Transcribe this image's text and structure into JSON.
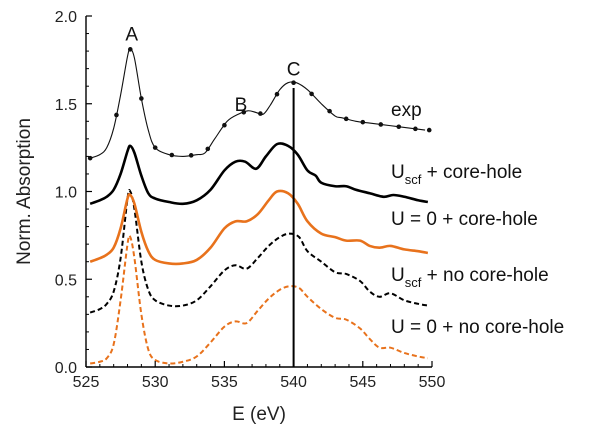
{
  "chart_data": {
    "type": "line",
    "xlabel": "E (eV)",
    "ylabel": "Norm. Absorption",
    "xlim": [
      525,
      550
    ],
    "ylim": [
      0,
      2.0
    ],
    "x_ticks": [
      525,
      530,
      535,
      540,
      545,
      550
    ],
    "y_ticks": [
      0.0,
      0.5,
      1.0,
      1.5,
      2.0
    ],
    "y_tick_labels": [
      "0.0",
      "0.5",
      "1.0",
      "1.5",
      "2.0"
    ],
    "grid": false,
    "vertical_line_x": 540,
    "peak_labels": [
      {
        "text": "A",
        "x": 528.3,
        "y": 1.9
      },
      {
        "text": "B",
        "x": 536.2,
        "y": 1.5
      },
      {
        "text": "C",
        "x": 540.0,
        "y": 1.7
      }
    ],
    "series": [
      {
        "name": "exp",
        "label_main": "exp",
        "label_sub": "",
        "label_tail": "",
        "color": "#111111",
        "width": 1.1,
        "dashed": false,
        "markers": true,
        "points": [
          [
            525.3,
            1.19
          ],
          [
            526,
            1.21
          ],
          [
            526.5,
            1.25
          ],
          [
            527.0,
            1.36
          ],
          [
            527.5,
            1.55
          ],
          [
            528.0,
            1.77
          ],
          [
            528.2,
            1.81
          ],
          [
            528.5,
            1.76
          ],
          [
            529.0,
            1.53
          ],
          [
            529.5,
            1.35
          ],
          [
            530.0,
            1.25
          ],
          [
            531.0,
            1.21
          ],
          [
            532.0,
            1.2
          ],
          [
            533.0,
            1.21
          ],
          [
            533.6,
            1.22
          ],
          [
            534.3,
            1.3
          ],
          [
            535.2,
            1.4
          ],
          [
            536.0,
            1.44
          ],
          [
            536.7,
            1.46
          ],
          [
            537.3,
            1.45
          ],
          [
            537.8,
            1.44
          ],
          [
            538.3,
            1.49
          ],
          [
            539.0,
            1.58
          ],
          [
            539.6,
            1.62
          ],
          [
            540.2,
            1.62
          ],
          [
            541.0,
            1.58
          ],
          [
            542.0,
            1.5
          ],
          [
            543.0,
            1.43
          ],
          [
            543.5,
            1.42
          ],
          [
            544.5,
            1.4
          ],
          [
            545.5,
            1.39
          ],
          [
            546.5,
            1.38
          ],
          [
            547.5,
            1.37
          ],
          [
            548.5,
            1.36
          ],
          [
            549.5,
            1.35
          ]
        ],
        "marker_x": [
          525.3,
          527.2,
          528.2,
          529.0,
          530.0,
          531.2,
          532.6,
          533.8,
          535.0,
          536.4,
          537.6,
          538.8,
          540.0,
          541.3,
          542.6,
          543.8,
          545.0,
          546.3,
          547.6,
          548.8,
          549.8
        ]
      },
      {
        "name": "Uscf + core-hole",
        "label_main": "U",
        "label_sub": "scf",
        "label_tail": " + core-hole",
        "color": "#000000",
        "width": 2.6,
        "dashed": false,
        "markers": false,
        "points": [
          [
            525.3,
            0.93
          ],
          [
            526,
            0.95
          ],
          [
            526.5,
            0.97
          ],
          [
            527.0,
            1.01
          ],
          [
            527.5,
            1.1
          ],
          [
            528.0,
            1.23
          ],
          [
            528.2,
            1.26
          ],
          [
            528.5,
            1.22
          ],
          [
            529.0,
            1.09
          ],
          [
            529.5,
            0.99
          ],
          [
            530.0,
            0.96
          ],
          [
            531.0,
            0.94
          ],
          [
            532.0,
            0.93
          ],
          [
            533.0,
            0.95
          ],
          [
            534.0,
            1.01
          ],
          [
            535.0,
            1.12
          ],
          [
            535.8,
            1.17
          ],
          [
            536.5,
            1.17
          ],
          [
            537.3,
            1.13
          ],
          [
            538.0,
            1.2
          ],
          [
            538.8,
            1.27
          ],
          [
            539.6,
            1.26
          ],
          [
            540.3,
            1.21
          ],
          [
            541.0,
            1.12
          ],
          [
            541.6,
            1.09
          ],
          [
            542.0,
            1.05
          ],
          [
            543.0,
            1.03
          ],
          [
            543.8,
            1.03
          ],
          [
            544.5,
            1.01
          ],
          [
            545.5,
            0.99
          ],
          [
            546.5,
            0.97
          ],
          [
            547.2,
            0.98
          ],
          [
            548.0,
            0.97
          ],
          [
            549.0,
            0.95
          ],
          [
            549.7,
            0.94
          ]
        ],
        "marker_x": []
      },
      {
        "name": "U = 0 + core-hole",
        "label_main": "U = 0 + core-hole",
        "label_sub": "",
        "label_tail": "",
        "color": "#e8721c",
        "width": 2.6,
        "dashed": false,
        "markers": false,
        "points": [
          [
            525.3,
            0.6
          ],
          [
            526,
            0.62
          ],
          [
            526.5,
            0.64
          ],
          [
            527.0,
            0.68
          ],
          [
            527.5,
            0.79
          ],
          [
            528.0,
            0.96
          ],
          [
            528.2,
            0.98
          ],
          [
            528.5,
            0.93
          ],
          [
            529.0,
            0.77
          ],
          [
            529.5,
            0.66
          ],
          [
            530.0,
            0.61
          ],
          [
            531.0,
            0.59
          ],
          [
            532.0,
            0.59
          ],
          [
            533.0,
            0.61
          ],
          [
            534.0,
            0.68
          ],
          [
            535.0,
            0.79
          ],
          [
            535.8,
            0.83
          ],
          [
            536.6,
            0.83
          ],
          [
            537.4,
            0.87
          ],
          [
            538.2,
            0.95
          ],
          [
            538.8,
            1.0
          ],
          [
            539.6,
            0.99
          ],
          [
            540.3,
            0.93
          ],
          [
            541.0,
            0.83
          ],
          [
            542.0,
            0.76
          ],
          [
            543.0,
            0.74
          ],
          [
            543.8,
            0.72
          ],
          [
            544.8,
            0.72
          ],
          [
            545.5,
            0.69
          ],
          [
            546.2,
            0.68
          ],
          [
            547.0,
            0.69
          ],
          [
            548.0,
            0.67
          ],
          [
            549.0,
            0.66
          ],
          [
            549.7,
            0.65
          ]
        ],
        "marker_x": []
      },
      {
        "name": "Uscf + no core-hole",
        "label_main": "U",
        "label_sub": "scf",
        "label_tail": " + no core-hole",
        "color": "#000000",
        "width": 2.0,
        "dashed": true,
        "markers": false,
        "points": [
          [
            525.3,
            0.31
          ],
          [
            526,
            0.33
          ],
          [
            526.5,
            0.36
          ],
          [
            527.0,
            0.43
          ],
          [
            527.5,
            0.62
          ],
          [
            528.0,
            0.96
          ],
          [
            528.2,
            1.0
          ],
          [
            528.5,
            0.9
          ],
          [
            529.0,
            0.6
          ],
          [
            529.5,
            0.44
          ],
          [
            530.0,
            0.38
          ],
          [
            531.0,
            0.35
          ],
          [
            532.0,
            0.35
          ],
          [
            533.0,
            0.38
          ],
          [
            534.0,
            0.46
          ],
          [
            535.0,
            0.55
          ],
          [
            535.8,
            0.58
          ],
          [
            536.6,
            0.56
          ],
          [
            537.4,
            0.62
          ],
          [
            538.2,
            0.69
          ],
          [
            539.0,
            0.74
          ],
          [
            539.7,
            0.76
          ],
          [
            540.4,
            0.74
          ],
          [
            541.0,
            0.66
          ],
          [
            542.0,
            0.6
          ],
          [
            543.0,
            0.54
          ],
          [
            543.8,
            0.53
          ],
          [
            544.8,
            0.49
          ],
          [
            545.5,
            0.43
          ],
          [
            546.2,
            0.4
          ],
          [
            547.0,
            0.42
          ],
          [
            548.0,
            0.38
          ],
          [
            549.0,
            0.36
          ],
          [
            549.7,
            0.35
          ]
        ],
        "marker_x": []
      },
      {
        "name": "U = 0 + no core-hole",
        "label_main": "U = 0 + no core-hole",
        "label_sub": "",
        "label_tail": "",
        "color": "#e8721c",
        "width": 2.0,
        "dashed": true,
        "markers": false,
        "points": [
          [
            525.3,
            0.02
          ],
          [
            526,
            0.03
          ],
          [
            526.5,
            0.05
          ],
          [
            527.0,
            0.13
          ],
          [
            527.5,
            0.38
          ],
          [
            528.0,
            0.7
          ],
          [
            528.2,
            0.74
          ],
          [
            528.5,
            0.62
          ],
          [
            529.0,
            0.3
          ],
          [
            529.5,
            0.1
          ],
          [
            530.0,
            0.04
          ],
          [
            531.0,
            0.02
          ],
          [
            532.0,
            0.03
          ],
          [
            533.0,
            0.06
          ],
          [
            534.0,
            0.14
          ],
          [
            535.0,
            0.23
          ],
          [
            535.8,
            0.26
          ],
          [
            536.6,
            0.25
          ],
          [
            537.4,
            0.32
          ],
          [
            538.2,
            0.39
          ],
          [
            539.0,
            0.44
          ],
          [
            539.7,
            0.46
          ],
          [
            540.4,
            0.45
          ],
          [
            541.0,
            0.4
          ],
          [
            542.0,
            0.33
          ],
          [
            543.0,
            0.28
          ],
          [
            543.8,
            0.27
          ],
          [
            544.8,
            0.22
          ],
          [
            545.5,
            0.16
          ],
          [
            546.2,
            0.11
          ],
          [
            547.0,
            0.11
          ],
          [
            548.0,
            0.08
          ],
          [
            549.0,
            0.06
          ],
          [
            549.7,
            0.05
          ]
        ],
        "marker_x": []
      }
    ]
  }
}
